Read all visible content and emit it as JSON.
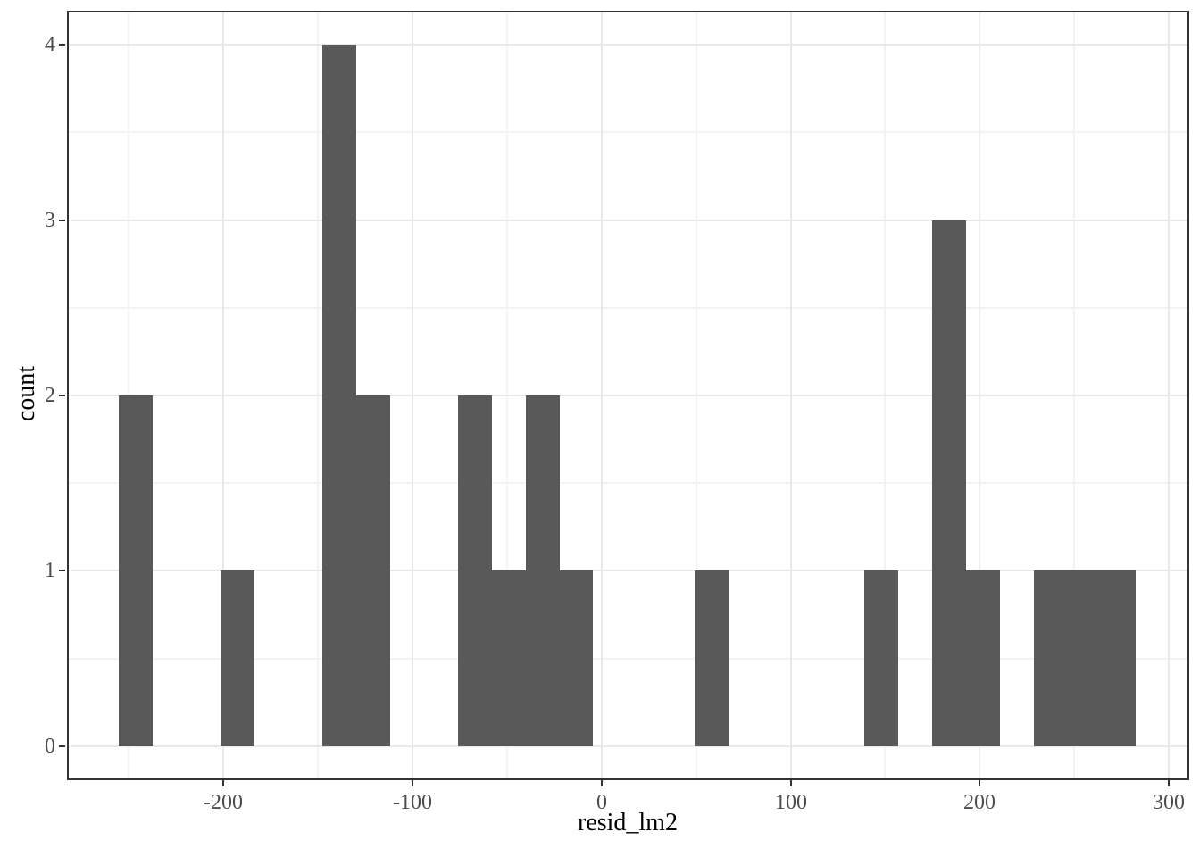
{
  "figure": {
    "background": "#FFFFFF",
    "panel_border_color": "#333333",
    "grid_major_color": "#E9E9E9",
    "grid_minor_color": "#F3F3F3",
    "bar_color": "#595959",
    "tick_mark_color": "#333333",
    "tick_label_color": "#4D4D4D",
    "axis_title_color": "#000000"
  },
  "chart_data": {
    "type": "bar",
    "subtype": "histogram",
    "title": "",
    "xlabel": "resid_lm2",
    "ylabel": "count",
    "legend_position": "none",
    "grid": true,
    "bin_start": -255.4,
    "bin_width": 17.93,
    "counts": [
      2,
      0,
      0,
      1,
      0,
      0,
      4,
      2,
      0,
      0,
      2,
      1,
      2,
      1,
      0,
      0,
      0,
      1,
      0,
      0,
      0,
      0,
      1,
      0,
      3,
      1,
      0,
      1,
      1,
      1
    ],
    "bins_nonzero": [
      {
        "from": -255.4,
        "to": -237.5,
        "count": 2
      },
      {
        "from": -201.6,
        "to": -183.7,
        "count": 1
      },
      {
        "from": -147.8,
        "to": -129.9,
        "count": 4
      },
      {
        "from": -129.9,
        "to": -112.0,
        "count": 2
      },
      {
        "from": -76.1,
        "to": -58.2,
        "count": 2
      },
      {
        "from": -58.2,
        "to": -40.2,
        "count": 1
      },
      {
        "from": -40.2,
        "to": -22.3,
        "count": 2
      },
      {
        "from": -22.3,
        "to": -4.3,
        "count": 1
      },
      {
        "from": 49.4,
        "to": 67.3,
        "count": 1
      },
      {
        "from": 139.1,
        "to": 157.0,
        "count": 1
      },
      {
        "from": 174.9,
        "to": 192.8,
        "count": 3
      },
      {
        "from": 192.8,
        "to": 210.8,
        "count": 1
      },
      {
        "from": 228.7,
        "to": 246.6,
        "count": 1
      },
      {
        "from": 246.6,
        "to": 264.5,
        "count": 1
      },
      {
        "from": 264.5,
        "to": 282.5,
        "count": 1
      }
    ],
    "total_observations": 24,
    "x_ticks_major": [
      -200,
      -100,
      0,
      100,
      200,
      300
    ],
    "x_tick_labels": [
      "-200",
      "-100",
      "0",
      "100",
      "200",
      "300"
    ],
    "x_ticks_minor": [
      -250,
      -150,
      -50,
      50,
      150,
      250
    ],
    "y_ticks_major": [
      0,
      1,
      2,
      3,
      4
    ],
    "y_tick_labels": [
      "0",
      "1",
      "2",
      "3",
      "4"
    ],
    "y_ticks_minor": [
      0.5,
      1.5,
      2.5,
      3.5
    ],
    "x_domain": [
      -281.8,
      309.9
    ],
    "y_domain": [
      -0.185,
      4.185
    ],
    "ylim": [
      0,
      4
    ]
  }
}
